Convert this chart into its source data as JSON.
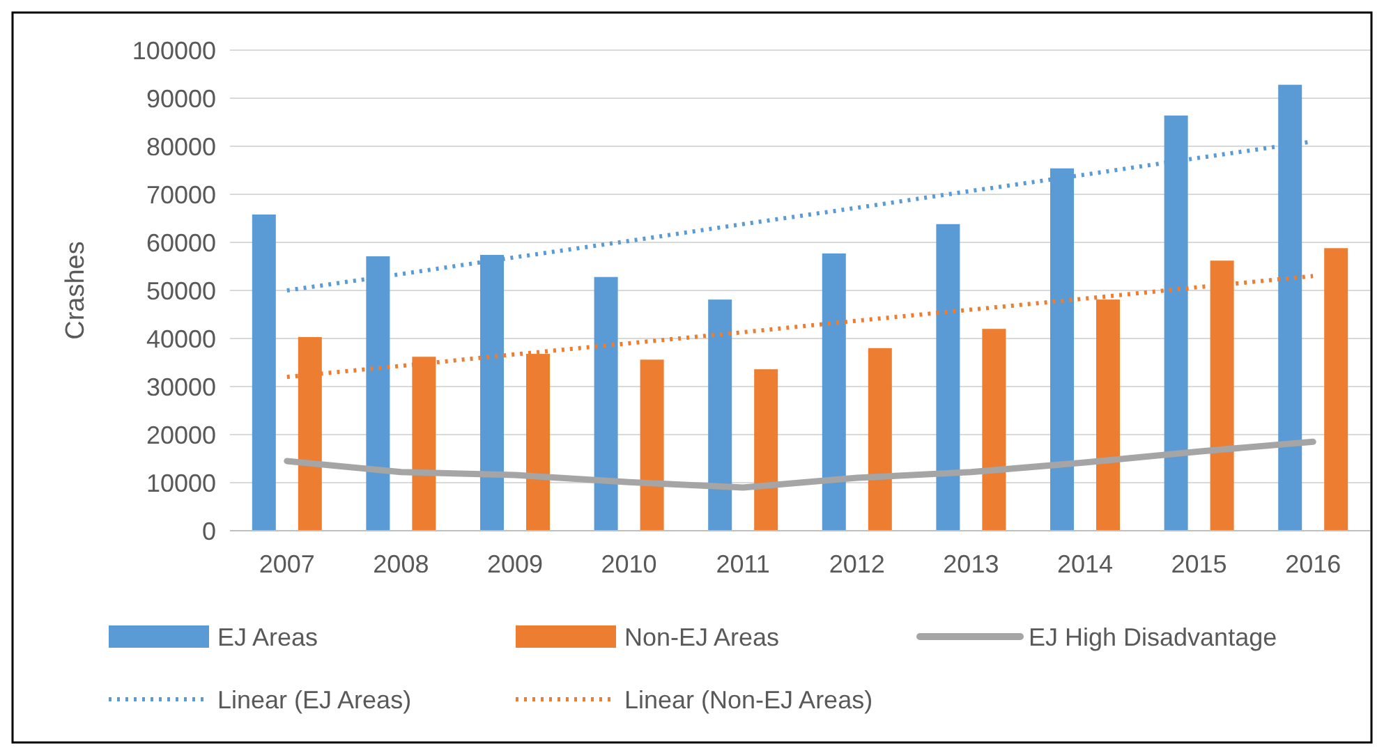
{
  "chart_data": {
    "type": "bar",
    "ylabel": "Crashes",
    "categories": [
      "2007",
      "2008",
      "2009",
      "2010",
      "2011",
      "2012",
      "2013",
      "2014",
      "2015",
      "2016"
    ],
    "series": [
      {
        "name": "EJ Areas",
        "color": "#5b9bd5",
        "values": [
          65800,
          57100,
          57400,
          52800,
          48100,
          57700,
          63800,
          75400,
          86400,
          92800
        ]
      },
      {
        "name": "Non-EJ Areas",
        "color": "#ed7d31",
        "values": [
          40300,
          36200,
          36800,
          35600,
          33600,
          38000,
          42000,
          48100,
          56200,
          58800
        ]
      },
      {
        "name": "EJ High Disadvantage",
        "type": "line",
        "color": "#a5a5a5",
        "values": [
          14500,
          12200,
          11600,
          10100,
          9000,
          11000,
          12200,
          14200,
          16500,
          18500
        ]
      },
      {
        "name": "Linear (EJ Areas)",
        "type": "line",
        "line_style": "dotted",
        "color": "#5b9bd5",
        "values": [
          50000,
          53400,
          56900,
          60300,
          63800,
          67200,
          70700,
          74100,
          77600,
          81000
        ]
      },
      {
        "name": "Linear (Non-EJ Areas)",
        "type": "line",
        "line_style": "dotted",
        "color": "#ed7d31",
        "values": [
          32000,
          34300,
          36700,
          39000,
          41300,
          43700,
          46000,
          48300,
          50700,
          53000
        ]
      }
    ],
    "ylim": [
      0,
      100000
    ],
    "yticks": [
      0,
      10000,
      20000,
      30000,
      40000,
      50000,
      60000,
      70000,
      80000,
      90000,
      100000
    ],
    "grid": "y",
    "legend": "bottom"
  }
}
